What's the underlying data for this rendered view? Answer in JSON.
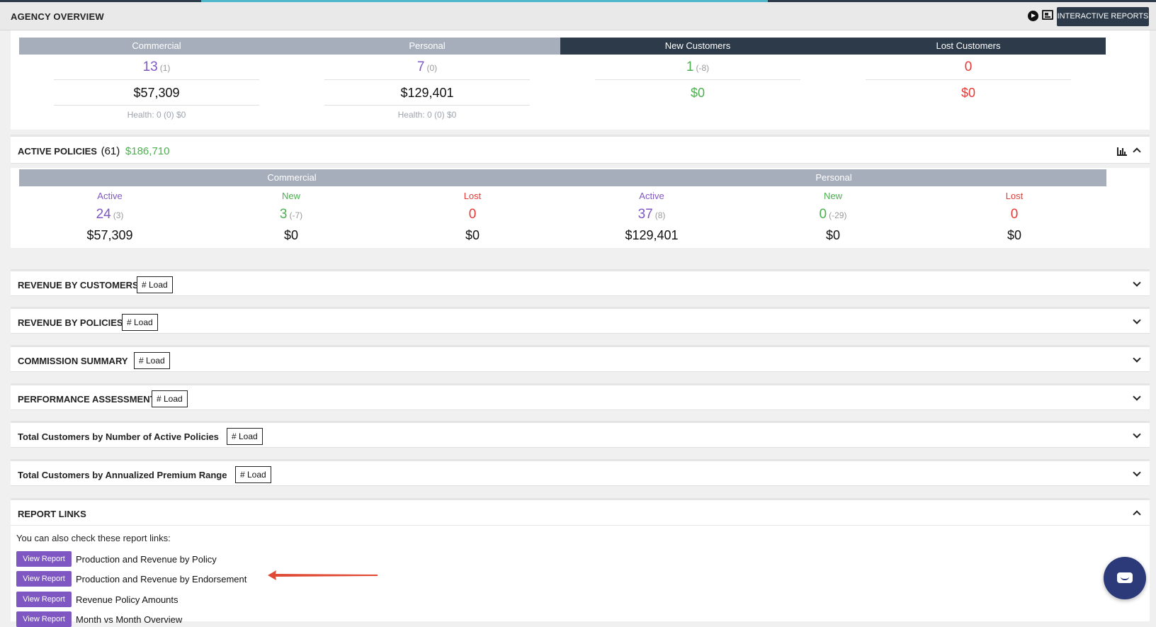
{
  "header": {
    "title": "AGENCY OVERVIEW",
    "interactive_reports": "INTERACTIVE REPORTS",
    "icons": [
      "play-icon",
      "newspaper-icon"
    ]
  },
  "summary": {
    "commercial": {
      "title": "Commercial",
      "count": "13",
      "delta": "(1)",
      "amount": "$57,309",
      "health": "Health: 0 (0) $0"
    },
    "personal": {
      "title": "Personal",
      "count": "7",
      "delta": "(0)",
      "amount": "$129,401",
      "health": "Health: 0 (0) $0"
    },
    "new_customers": {
      "title": "New Customers",
      "count": "1",
      "delta": "(-8)",
      "amount": "$0"
    },
    "lost_customers": {
      "title": "Lost Customers",
      "count": "0",
      "amount": "$0"
    }
  },
  "active_policies": {
    "title": "ACTIVE POLICIES",
    "count": "(61)",
    "amount": "$186,710",
    "commercial": {
      "title": "Commercial",
      "active": {
        "label": "Active",
        "count": "24",
        "delta": "(3)",
        "amount": "$57,309"
      },
      "new": {
        "label": "New",
        "count": "3",
        "delta": "(-7)",
        "amount": "$0"
      },
      "lost": {
        "label": "Lost",
        "count": "0",
        "amount": "$0"
      }
    },
    "personal": {
      "title": "Personal",
      "active": {
        "label": "Active",
        "count": "37",
        "delta": "(8)",
        "amount": "$129,401"
      },
      "new": {
        "label": "New",
        "count": "0",
        "delta": "(-29)",
        "amount": "$0"
      },
      "lost": {
        "label": "Lost",
        "count": "0",
        "amount": "$0"
      }
    }
  },
  "sections": [
    {
      "title": "REVENUE BY CUSTOMERS",
      "load": "# Load"
    },
    {
      "title": "REVENUE BY POLICIES",
      "load": "# Load"
    },
    {
      "title": "COMMISSION SUMMARY",
      "load": "# Load"
    },
    {
      "title": "PERFORMANCE ASSESSMENT",
      "load": "# Load"
    },
    {
      "title": "Total Customers by Number of Active Policies",
      "load": "# Load"
    },
    {
      "title": "Total Customers by Annualized Premium Range",
      "load": "# Load"
    }
  ],
  "report_links": {
    "title": "REPORT LINKS",
    "intro": "You can also check these report links:",
    "button_label": "View Report",
    "items": [
      "Production and Revenue by Policy",
      "Production and Revenue by Endorsement",
      "Revenue Policy Amounts",
      "Month vs Month Overview"
    ]
  },
  "colors": {
    "accent_purple": "#7e57c2",
    "positive_green": "#4caf50",
    "negative_red": "#e53935",
    "dark_navy": "#2c3a4a",
    "annotation_arrow": "#e04a35"
  }
}
